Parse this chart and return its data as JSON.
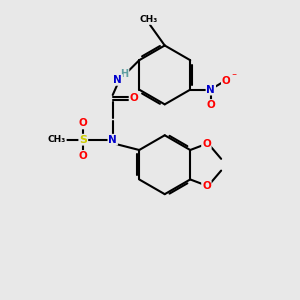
{
  "bg_color": "#e8e8e8",
  "bond_color": "#000000",
  "bond_width": 1.5,
  "atom_colors": {
    "N": "#0000cd",
    "O": "#ff0000",
    "S": "#cccc00",
    "H": "#5f9ea0",
    "C": "#000000"
  },
  "figsize": [
    3.0,
    3.0
  ],
  "dpi": 100
}
